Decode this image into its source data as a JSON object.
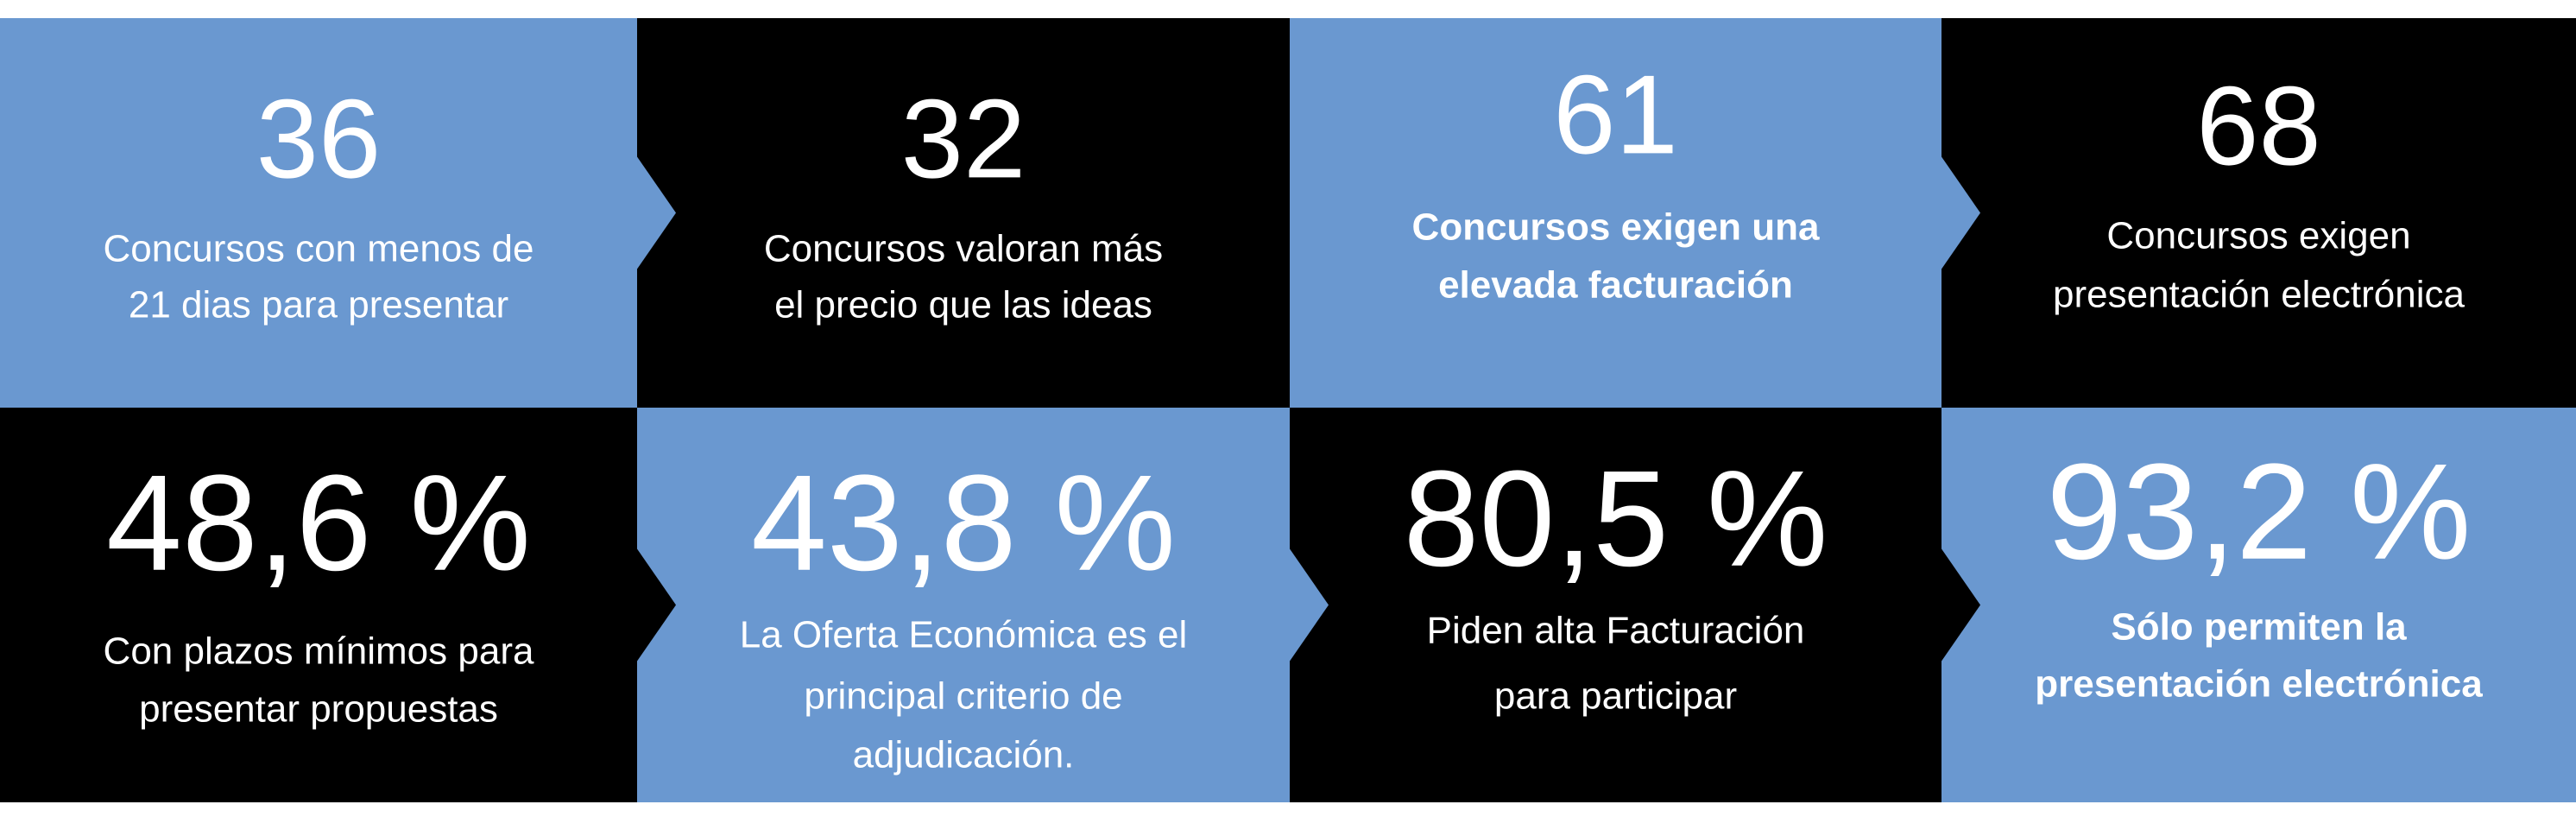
{
  "tiles": [
    {
      "number": "36",
      "lines": [
        "Concursos con menos de",
        "21 dias para presentar"
      ]
    },
    {
      "number": "32",
      "lines": [
        "Concursos valoran más",
        "el precio que las ideas"
      ]
    },
    {
      "number": "61",
      "lines": [
        "Concursos exigen una",
        "elevada facturación"
      ]
    },
    {
      "number": "68",
      "lines": [
        "Concursos exigen",
        "presentación electrónica"
      ]
    },
    {
      "number": "48,6 %",
      "lines": [
        "Con plazos mínimos para",
        "presentar propuestas"
      ]
    },
    {
      "number": "43,8 %",
      "lines": [
        "La Oferta Económica es el",
        "principal criterio de",
        "adjudicación."
      ]
    },
    {
      "number": "80,5 %",
      "lines": [
        "Piden alta Facturación",
        "para participar"
      ]
    },
    {
      "number": "93,2 %",
      "lines": [
        "Sólo permiten la",
        "presentación electrónica"
      ]
    }
  ]
}
